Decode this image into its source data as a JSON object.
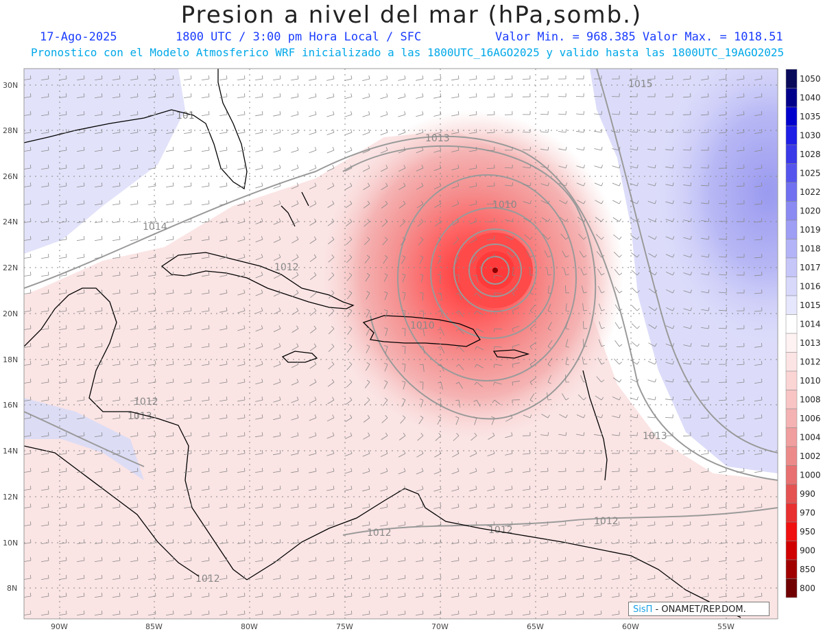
{
  "header": {
    "title": "Presion a nivel del mar (hPa,somb.)",
    "date": "17-Ago-2025",
    "time": "1800 UTC / 3:00 pm Hora Local / SFC",
    "min_max": "Valor Min. = 968.385  Valor Max. = 1018.51",
    "forecast": "Pronostico con el Modelo Atmosferico WRF inicializado a las 1800UTC_16AGO2025 y valido hasta las  1800UTC_19AGO2025"
  },
  "map": {
    "lon_labels": [
      "90W",
      "85W",
      "80W",
      "75W",
      "70W",
      "65W",
      "60W",
      "55W"
    ],
    "lat_labels": [
      "30N",
      "28N",
      "26N",
      "24N",
      "22N",
      "20N",
      "18N",
      "16N",
      "14N",
      "12N",
      "10N",
      "8N"
    ],
    "contour_labels": [
      "1015",
      "1013",
      "1010",
      "1014",
      "1012",
      "1010",
      "1012",
      "1013",
      "1013",
      "1012",
      "1012",
      "1012",
      "1012",
      "101"
    ],
    "low_center_hpa": 968.385,
    "colors": {
      "land": "#000000",
      "grid": "#888888",
      "contour": "#999999"
    }
  },
  "colorbar": {
    "labels": [
      "1050",
      "1040",
      "1035",
      "1030",
      "1028",
      "1025",
      "1022",
      "1020",
      "1019",
      "1018",
      "1017",
      "1016",
      "1015",
      "1014",
      "1013",
      "1012",
      "1010",
      "1008",
      "1006",
      "1004",
      "1002",
      "1000",
      "990",
      "970",
      "950",
      "900",
      "850",
      "800"
    ],
    "colors": [
      "#0a0a5a",
      "#00008b",
      "#0000cd",
      "#1e1ee6",
      "#3a3ae8",
      "#5555ee",
      "#7070f0",
      "#8a8af2",
      "#9e9ef5",
      "#b3b3f7",
      "#c6c6f9",
      "#d8d8fb",
      "#e6e6fd",
      "#ffffff",
      "#fff2f2",
      "#fde4e4",
      "#fbd4d4",
      "#f8c4c4",
      "#f4b2b2",
      "#f09e9e",
      "#ec8a8a",
      "#e87070",
      "#e45252",
      "#e83030",
      "#f01010",
      "#d00000",
      "#a00000",
      "#700000"
    ]
  },
  "credit": {
    "brand": "SisΠ",
    "text": " - ONAMET/REP.DOM."
  }
}
